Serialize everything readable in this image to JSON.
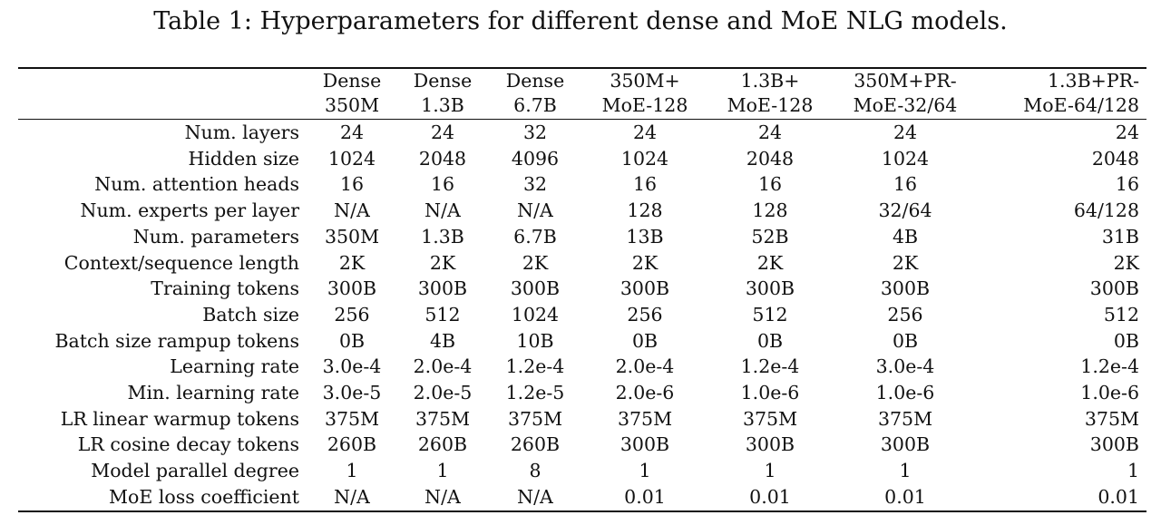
{
  "caption": "Table 1: Hyperparameters for different dense and MoE NLG models.",
  "columns": [
    {
      "line1": "Dense",
      "line2": "350M"
    },
    {
      "line1": "Dense",
      "line2": "1.3B"
    },
    {
      "line1": "Dense",
      "line2": "6.7B"
    },
    {
      "line1": "350M+",
      "line2": "MoE-128"
    },
    {
      "line1": "1.3B+",
      "line2": "MoE-128"
    },
    {
      "line1": "350M+PR-",
      "line2": "MoE-32/64"
    },
    {
      "line1": "1.3B+PR-",
      "line2": "MoE-64/128"
    }
  ],
  "rows": [
    {
      "label": "Num. layers",
      "values": [
        "24",
        "24",
        "32",
        "24",
        "24",
        "24",
        "24"
      ]
    },
    {
      "label": "Hidden size",
      "values": [
        "1024",
        "2048",
        "4096",
        "1024",
        "2048",
        "1024",
        "2048"
      ]
    },
    {
      "label": "Num. attention heads",
      "values": [
        "16",
        "16",
        "32",
        "16",
        "16",
        "16",
        "16"
      ]
    },
    {
      "label": "Num. experts per layer",
      "values": [
        "N/A",
        "N/A",
        "N/A",
        "128",
        "128",
        "32/64",
        "64/128"
      ]
    },
    {
      "label": "Num. parameters",
      "values": [
        "350M",
        "1.3B",
        "6.7B",
        "13B",
        "52B",
        "4B",
        "31B"
      ]
    },
    {
      "label": "Context/sequence length",
      "values": [
        "2K",
        "2K",
        "2K",
        "2K",
        "2K",
        "2K",
        "2K"
      ]
    },
    {
      "label": "Training tokens",
      "values": [
        "300B",
        "300B",
        "300B",
        "300B",
        "300B",
        "300B",
        "300B"
      ]
    },
    {
      "label": "Batch size",
      "values": [
        "256",
        "512",
        "1024",
        "256",
        "512",
        "256",
        "512"
      ]
    },
    {
      "label": "Batch size rampup tokens",
      "values": [
        "0B",
        "4B",
        "10B",
        "0B",
        "0B",
        "0B",
        "0B"
      ]
    },
    {
      "label": "Learning rate",
      "values": [
        "3.0e-4",
        "2.0e-4",
        "1.2e-4",
        "2.0e-4",
        "1.2e-4",
        "3.0e-4",
        "1.2e-4"
      ]
    },
    {
      "label": "Min. learning rate",
      "values": [
        "3.0e-5",
        "2.0e-5",
        "1.2e-5",
        "2.0e-6",
        "1.0e-6",
        "1.0e-6",
        "1.0e-6"
      ]
    },
    {
      "label": "LR linear warmup tokens",
      "values": [
        "375M",
        "375M",
        "375M",
        "375M",
        "375M",
        "375M",
        "375M"
      ]
    },
    {
      "label": "LR cosine decay tokens",
      "values": [
        "260B",
        "260B",
        "260B",
        "300B",
        "300B",
        "300B",
        "300B"
      ]
    },
    {
      "label": "Model parallel degree",
      "values": [
        "1",
        "1",
        "8",
        "1",
        "1",
        "1",
        "1"
      ]
    },
    {
      "label": "MoE loss coefficient",
      "values": [
        "N/A",
        "N/A",
        "N/A",
        "0.01",
        "0.01",
        "0.01",
        "0.01"
      ]
    }
  ]
}
